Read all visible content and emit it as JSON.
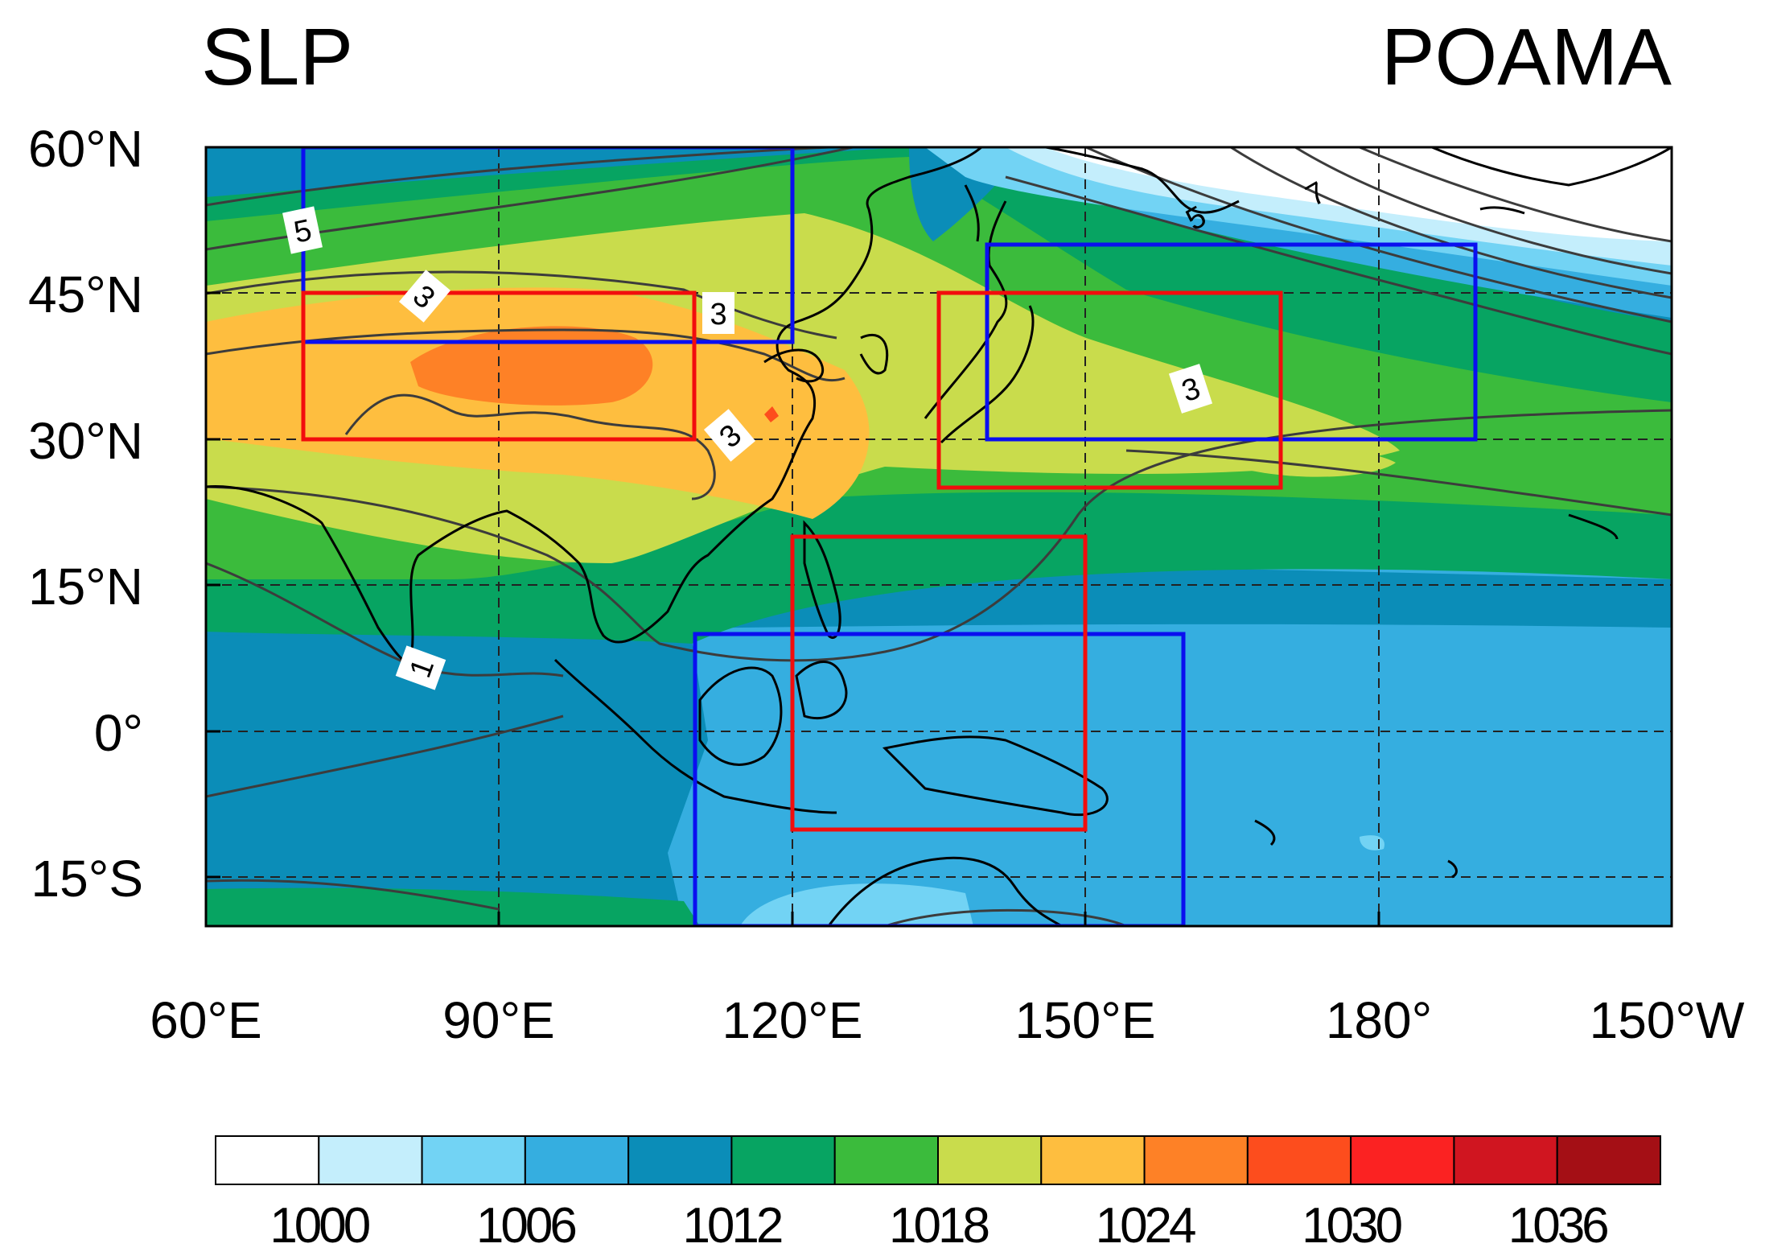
{
  "title_left": "SLP",
  "title_right": "POAMA",
  "lat_ticks": [
    "60°N",
    "45°N",
    "30°N",
    "15°N",
    "0°",
    "15°S"
  ],
  "lon_ticks": [
    "60°E",
    "90°E",
    "120°E",
    "150°E",
    "180°",
    "150°W"
  ],
  "contour_labels": [
    "5",
    "3",
    "3",
    "3",
    "3",
    "1",
    "5",
    "7"
  ],
  "colorbar": {
    "colors": [
      "#ffffff",
      "#c4eefc",
      "#72d3f4",
      "#35aee0",
      "#0b8db8",
      "#07a462",
      "#3bbb3c",
      "#c9dc4c",
      "#febe3f",
      "#fe8126",
      "#fd4d1d",
      "#fb2222",
      "#d01520",
      "#a40f15"
    ],
    "labels": [
      "1000",
      "1006",
      "1012",
      "1018",
      "1024",
      "1030",
      "1036"
    ]
  },
  "colors": {
    "box_red": "#f20d0d",
    "box_blue": "#0a0ff0",
    "contour": "#3c3c3c",
    "coast": "#000000"
  }
}
